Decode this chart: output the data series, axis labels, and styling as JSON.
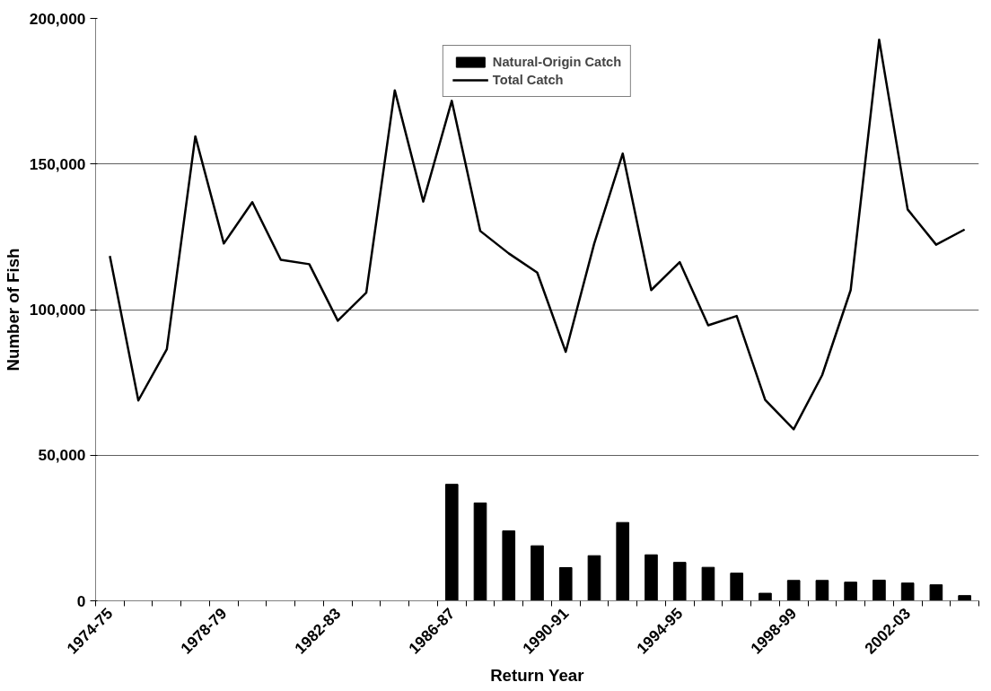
{
  "chart_data": {
    "type": "bar",
    "xlabel": "Return Year",
    "ylabel": "Number of Fish",
    "categories": [
      "1974-75",
      null,
      null,
      null,
      "1978-79",
      null,
      null,
      null,
      "1982-83",
      null,
      null,
      null,
      "1986-87",
      null,
      null,
      null,
      "1990-91",
      null,
      null,
      null,
      "1994-95",
      null,
      null,
      null,
      "1998-99",
      null,
      null,
      null,
      "2002-03",
      null,
      null
    ],
    "series": [
      {
        "name": "Natural-Origin Catch",
        "color": "#000000",
        "values": [
          null,
          null,
          null,
          null,
          null,
          null,
          null,
          null,
          null,
          null,
          null,
          null,
          40000,
          33600,
          24000,
          18900,
          11400,
          15500,
          26900,
          15800,
          13200,
          11500,
          9500,
          2600,
          7000,
          7000,
          6400,
          7100,
          6100,
          5500,
          1800
        ]
      },
      {
        "name": "Total Catch",
        "type": "line",
        "color": "#000000",
        "values": [
          118400,
          68800,
          86400,
          159500,
          122700,
          136900,
          117100,
          115600,
          96200,
          105800,
          175300,
          137100,
          171700,
          127000,
          119300,
          112700,
          85500,
          122700,
          153600,
          106700,
          116300,
          94600,
          97800,
          69000,
          58900,
          77500,
          106700,
          192700,
          134400,
          122300,
          127500
        ]
      }
    ],
    "ylim": [
      0,
      200000
    ],
    "yticks": [
      {
        "value": 0,
        "label": "0"
      },
      {
        "value": 50000,
        "label": "50,000"
      },
      {
        "value": 100000,
        "label": "100,000"
      },
      {
        "value": 150000,
        "label": "150,000"
      },
      {
        "value": 200000,
        "label": "200,000"
      }
    ],
    "grid": "y",
    "legend": "top",
    "marker": "none",
    "line_style": "solid"
  }
}
